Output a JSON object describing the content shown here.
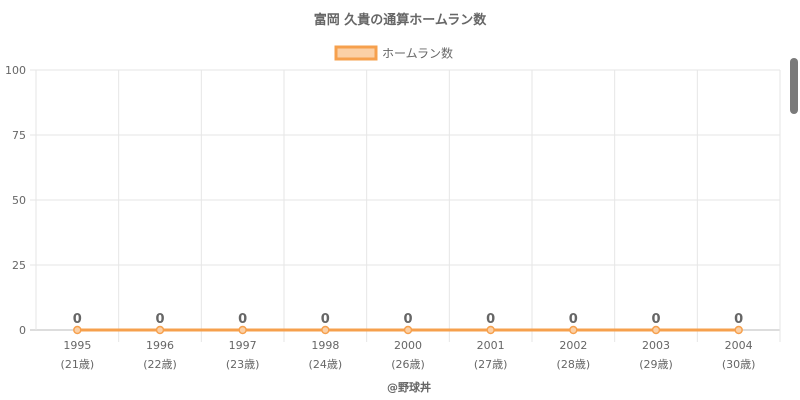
{
  "chart_data": {
    "type": "line",
    "title": "富岡 久貴の通算ホームラン数",
    "categories": [
      "1995",
      "1996",
      "1997",
      "1998",
      "2000",
      "2001",
      "2002",
      "2003",
      "2004"
    ],
    "category_sublabels": [
      "(21歳)",
      "(22歳)",
      "(23歳)",
      "(24歳)",
      "(26歳)",
      "(27歳)",
      "(28歳)",
      "(29歳)",
      "(30歳)"
    ],
    "series": [
      {
        "name": "ホームラン数",
        "values": [
          0,
          0,
          0,
          0,
          0,
          0,
          0,
          0,
          0
        ]
      }
    ],
    "data_labels": [
      "0",
      "0",
      "0",
      "0",
      "0",
      "0",
      "0",
      "0",
      "0"
    ],
    "ylim": [
      0,
      100
    ],
    "yticks": [
      "0",
      "25",
      "50",
      "75",
      "100"
    ],
    "legend_position": "top-center",
    "grid": true,
    "colors": {
      "line": "#f6a04d",
      "legend_fill": "#fbd0a6",
      "grid": "#e6e6e6",
      "axis": "#cccccc",
      "text": "#666666"
    }
  },
  "footer": {
    "credit": "@野球丼"
  }
}
